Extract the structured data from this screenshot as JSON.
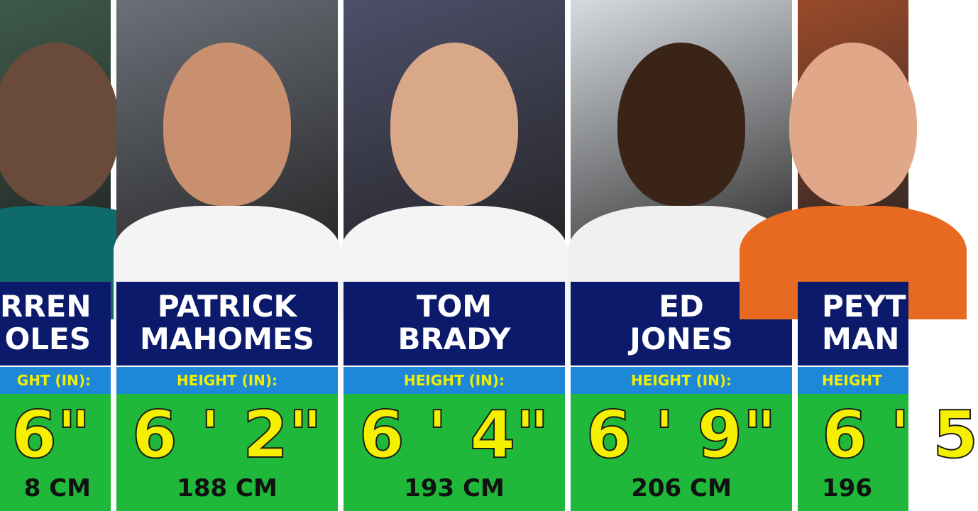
{
  "cards": [
    {
      "name": [
        "RREN",
        "OLES"
      ],
      "height_label": "GHT (IN):",
      "height": "6\"",
      "cm": "8 CM",
      "crop": "left"
    },
    {
      "name": [
        "PATRICK",
        "MAHOMES"
      ],
      "height_label": "HEIGHT (IN):",
      "height": "6 ' 2\"",
      "cm": "188 CM",
      "crop": "none"
    },
    {
      "name": [
        "TOM",
        "BRADY"
      ],
      "height_label": "HEIGHT (IN):",
      "height": "6 ' 4\"",
      "cm": "193 CM",
      "crop": "none"
    },
    {
      "name": [
        "ED",
        "JONES"
      ],
      "height_label": "HEIGHT (IN):",
      "height": "6 ' 9\"",
      "cm": "206 CM",
      "crop": "none"
    },
    {
      "name": [
        "PEYT",
        "MAN"
      ],
      "height_label": "HEIGHT",
      "height": "6 ' 5",
      "cm": "196",
      "crop": "right"
    }
  ]
}
